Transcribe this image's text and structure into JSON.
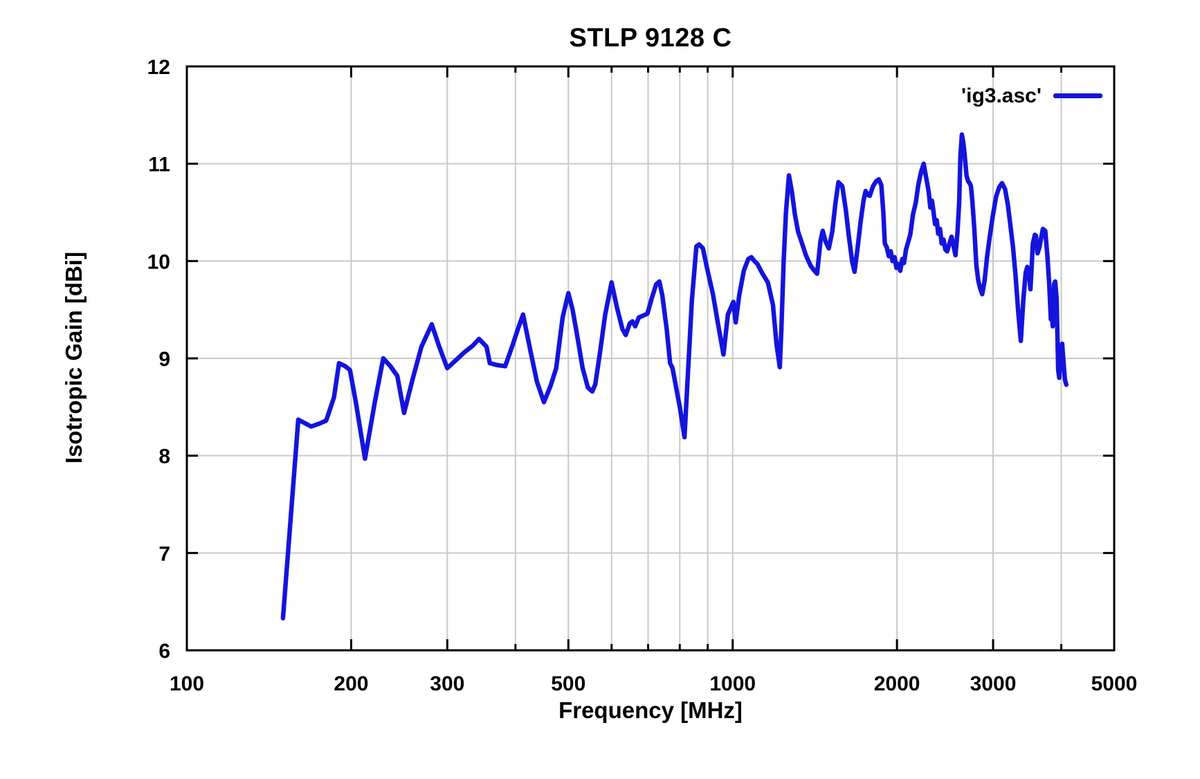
{
  "chart_data": {
    "type": "line",
    "title": "STLP 9128 C",
    "xlabel": "Frequency [MHz]",
    "ylabel": "Isotropic Gain [dBi]",
    "x_scale": "log",
    "x_range": [
      100,
      5000
    ],
    "y_range": [
      6,
      12
    ],
    "grid": true,
    "x_ticks": [
      {
        "value": 100,
        "label": "100"
      },
      {
        "value": 200,
        "label": "200"
      },
      {
        "value": 300,
        "label": "300"
      },
      {
        "value": 500,
        "label": "500"
      },
      {
        "value": 1000,
        "label": "1000"
      },
      {
        "value": 2000,
        "label": "2000"
      },
      {
        "value": 3000,
        "label": "3000"
      },
      {
        "value": 5000,
        "label": "5000"
      }
    ],
    "x_minor_gridlines": [
      400,
      600,
      700,
      800,
      900,
      4000
    ],
    "y_ticks": [
      {
        "value": 6,
        "label": "6"
      },
      {
        "value": 7,
        "label": "7"
      },
      {
        "value": 8,
        "label": "8"
      },
      {
        "value": 9,
        "label": "9"
      },
      {
        "value": 10,
        "label": "10"
      },
      {
        "value": 11,
        "label": "11"
      },
      {
        "value": 12,
        "label": "12"
      }
    ],
    "legend": {
      "label": "'ig3.asc'",
      "position": "top-right"
    },
    "colors": {
      "line": "#1414dd",
      "grid": "#c9c9c9",
      "axis": "#000000",
      "text": "#000000",
      "background": "#ffffff"
    },
    "series": [
      {
        "name": "'ig3.asc'",
        "points": [
          [
            150,
            6.33
          ],
          [
            160,
            8.37
          ],
          [
            169,
            8.3
          ],
          [
            175,
            8.33
          ],
          [
            180,
            8.36
          ],
          [
            186,
            8.6
          ],
          [
            190,
            8.95
          ],
          [
            195,
            8.92
          ],
          [
            199,
            8.88
          ],
          [
            204,
            8.55
          ],
          [
            212,
            7.97
          ],
          [
            221,
            8.55
          ],
          [
            229,
            9.0
          ],
          [
            236,
            8.92
          ],
          [
            243,
            8.82
          ],
          [
            250,
            8.44
          ],
          [
            259,
            8.78
          ],
          [
            269,
            9.12
          ],
          [
            281,
            9.35
          ],
          [
            290,
            9.12
          ],
          [
            300,
            8.9
          ],
          [
            311,
            8.98
          ],
          [
            322,
            9.06
          ],
          [
            334,
            9.13
          ],
          [
            343,
            9.2
          ],
          [
            354,
            9.12
          ],
          [
            359,
            8.95
          ],
          [
            371,
            8.93
          ],
          [
            383,
            8.92
          ],
          [
            396,
            9.15
          ],
          [
            404,
            9.3
          ],
          [
            413,
            9.45
          ],
          [
            426,
            9.08
          ],
          [
            438,
            8.76
          ],
          [
            451,
            8.55
          ],
          [
            464,
            8.72
          ],
          [
            475,
            8.9
          ],
          [
            488,
            9.42
          ],
          [
            500,
            9.67
          ],
          [
            509,
            9.5
          ],
          [
            518,
            9.26
          ],
          [
            531,
            8.9
          ],
          [
            543,
            8.7
          ],
          [
            553,
            8.66
          ],
          [
            560,
            8.73
          ],
          [
            571,
            9.05
          ],
          [
            584,
            9.45
          ],
          [
            600,
            9.78
          ],
          [
            614,
            9.52
          ],
          [
            628,
            9.3
          ],
          [
            637,
            9.24
          ],
          [
            648,
            9.36
          ],
          [
            655,
            9.38
          ],
          [
            663,
            9.33
          ],
          [
            673,
            9.42
          ],
          [
            686,
            9.44
          ],
          [
            698,
            9.46
          ],
          [
            711,
            9.62
          ],
          [
            724,
            9.76
          ],
          [
            734,
            9.79
          ],
          [
            743,
            9.65
          ],
          [
            757,
            9.3
          ],
          [
            768,
            8.95
          ],
          [
            776,
            8.9
          ],
          [
            800,
            8.5
          ],
          [
            816,
            8.19
          ],
          [
            828,
            8.85
          ],
          [
            842,
            9.6
          ],
          [
            858,
            10.15
          ],
          [
            868,
            10.17
          ],
          [
            882,
            10.13
          ],
          [
            898,
            9.92
          ],
          [
            920,
            9.66
          ],
          [
            941,
            9.34
          ],
          [
            962,
            9.04
          ],
          [
            980,
            9.45
          ],
          [
            1003,
            9.58
          ],
          [
            1013,
            9.37
          ],
          [
            1028,
            9.65
          ],
          [
            1048,
            9.9
          ],
          [
            1068,
            10.02
          ],
          [
            1082,
            10.04
          ],
          [
            1096,
            10.0
          ],
          [
            1110,
            9.97
          ],
          [
            1134,
            9.87
          ],
          [
            1160,
            9.78
          ],
          [
            1185,
            9.55
          ],
          [
            1203,
            9.15
          ],
          [
            1220,
            8.91
          ],
          [
            1228,
            9.3
          ],
          [
            1240,
            10.0
          ],
          [
            1252,
            10.5
          ],
          [
            1268,
            10.88
          ],
          [
            1283,
            10.72
          ],
          [
            1300,
            10.48
          ],
          [
            1318,
            10.3
          ],
          [
            1340,
            10.18
          ],
          [
            1362,
            10.06
          ],
          [
            1390,
            9.95
          ],
          [
            1412,
            9.9
          ],
          [
            1428,
            9.87
          ],
          [
            1448,
            10.2
          ],
          [
            1462,
            10.31
          ],
          [
            1480,
            10.2
          ],
          [
            1500,
            10.13
          ],
          [
            1522,
            10.3
          ],
          [
            1543,
            10.6
          ],
          [
            1562,
            10.81
          ],
          [
            1588,
            10.77
          ],
          [
            1612,
            10.52
          ],
          [
            1633,
            10.25
          ],
          [
            1655,
            10.0
          ],
          [
            1672,
            9.89
          ],
          [
            1695,
            10.15
          ],
          [
            1715,
            10.4
          ],
          [
            1737,
            10.62
          ],
          [
            1752,
            10.72
          ],
          [
            1768,
            10.68
          ],
          [
            1783,
            10.67
          ],
          [
            1808,
            10.77
          ],
          [
            1832,
            10.82
          ],
          [
            1852,
            10.84
          ],
          [
            1872,
            10.78
          ],
          [
            1888,
            10.5
          ],
          [
            1900,
            10.18
          ],
          [
            1916,
            10.14
          ],
          [
            1932,
            10.05
          ],
          [
            1948,
            10.1
          ],
          [
            1962,
            10.0
          ],
          [
            1980,
            10.04
          ],
          [
            1995,
            9.93
          ],
          [
            2012,
            9.97
          ],
          [
            2028,
            9.9
          ],
          [
            2045,
            10.02
          ],
          [
            2060,
            9.98
          ],
          [
            2078,
            10.12
          ],
          [
            2098,
            10.2
          ],
          [
            2115,
            10.27
          ],
          [
            2140,
            10.48
          ],
          [
            2165,
            10.6
          ],
          [
            2188,
            10.78
          ],
          [
            2215,
            10.92
          ],
          [
            2238,
            11.0
          ],
          [
            2258,
            10.88
          ],
          [
            2272,
            10.8
          ],
          [
            2288,
            10.7
          ],
          [
            2302,
            10.55
          ],
          [
            2318,
            10.62
          ],
          [
            2332,
            10.52
          ],
          [
            2348,
            10.38
          ],
          [
            2365,
            10.42
          ],
          [
            2380,
            10.28
          ],
          [
            2398,
            10.33
          ],
          [
            2415,
            10.18
          ],
          [
            2435,
            10.22
          ],
          [
            2452,
            10.12
          ],
          [
            2472,
            10.1
          ],
          [
            2495,
            10.18
          ],
          [
            2518,
            10.25
          ],
          [
            2540,
            10.15
          ],
          [
            2560,
            10.06
          ],
          [
            2582,
            10.3
          ],
          [
            2600,
            10.6
          ],
          [
            2614,
            11.08
          ],
          [
            2630,
            11.3
          ],
          [
            2645,
            11.22
          ],
          [
            2660,
            11.1
          ],
          [
            2682,
            10.88
          ],
          [
            2700,
            10.82
          ],
          [
            2718,
            10.8
          ],
          [
            2732,
            10.77
          ],
          [
            2748,
            10.62
          ],
          [
            2772,
            10.32
          ],
          [
            2795,
            9.96
          ],
          [
            2818,
            9.8
          ],
          [
            2840,
            9.72
          ],
          [
            2865,
            9.66
          ],
          [
            2895,
            9.8
          ],
          [
            2925,
            10.05
          ],
          [
            2958,
            10.25
          ],
          [
            2995,
            10.46
          ],
          [
            3038,
            10.66
          ],
          [
            3080,
            10.76
          ],
          [
            3115,
            10.8
          ],
          [
            3155,
            10.74
          ],
          [
            3192,
            10.58
          ],
          [
            3225,
            10.38
          ],
          [
            3262,
            10.15
          ],
          [
            3298,
            9.85
          ],
          [
            3335,
            9.48
          ],
          [
            3372,
            9.18
          ],
          [
            3408,
            9.6
          ],
          [
            3442,
            9.88
          ],
          [
            3465,
            9.94
          ],
          [
            3485,
            9.9
          ],
          [
            3512,
            9.71
          ],
          [
            3548,
            10.18
          ],
          [
            3578,
            10.27
          ],
          [
            3595,
            10.26
          ],
          [
            3618,
            10.08
          ],
          [
            3648,
            10.14
          ],
          [
            3678,
            10.25
          ],
          [
            3702,
            10.33
          ],
          [
            3738,
            10.31
          ],
          [
            3772,
            10.05
          ],
          [
            3800,
            9.78
          ],
          [
            3828,
            9.4
          ],
          [
            3845,
            9.45
          ],
          [
            3858,
            9.33
          ],
          [
            3880,
            9.76
          ],
          [
            3898,
            9.79
          ],
          [
            3922,
            9.62
          ],
          [
            3948,
            8.88
          ],
          [
            3965,
            8.8
          ],
          [
            3995,
            9.1
          ],
          [
            4015,
            9.15
          ],
          [
            4038,
            8.96
          ],
          [
            4062,
            8.78
          ],
          [
            4085,
            8.73
          ]
        ]
      }
    ]
  }
}
